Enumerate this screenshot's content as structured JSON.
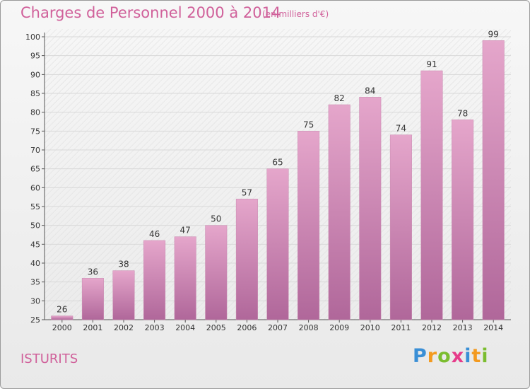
{
  "header": {
    "title": "Charges de Personnel 2000 à 2014",
    "subtitle": "(en milliers d'€)"
  },
  "footer": {
    "place": "ISTURITS",
    "brand": [
      "P",
      "r",
      "o",
      "x",
      "i",
      "t",
      "i"
    ]
  },
  "colors": {
    "title": "#d0609a",
    "bar_top": "#e5a6cb",
    "bar_bottom": "#b0679a",
    "grid": "#d8d8d8"
  },
  "chart_data": {
    "type": "bar",
    "title": "Charges de Personnel 2000 à 2014",
    "subtitle": "(en milliers d'€)",
    "categories": [
      "2000",
      "2001",
      "2002",
      "2003",
      "2004",
      "2005",
      "2006",
      "2007",
      "2008",
      "2009",
      "2010",
      "2011",
      "2012",
      "2013",
      "2014"
    ],
    "values": [
      26,
      36,
      38,
      46,
      47,
      50,
      57,
      65,
      75,
      82,
      84,
      74,
      91,
      78,
      99
    ],
    "ylim": [
      25,
      100
    ],
    "yticks": [
      25,
      30,
      35,
      40,
      45,
      50,
      55,
      60,
      65,
      70,
      75,
      80,
      85,
      90,
      95,
      100
    ],
    "grid": true,
    "legend": "none"
  }
}
